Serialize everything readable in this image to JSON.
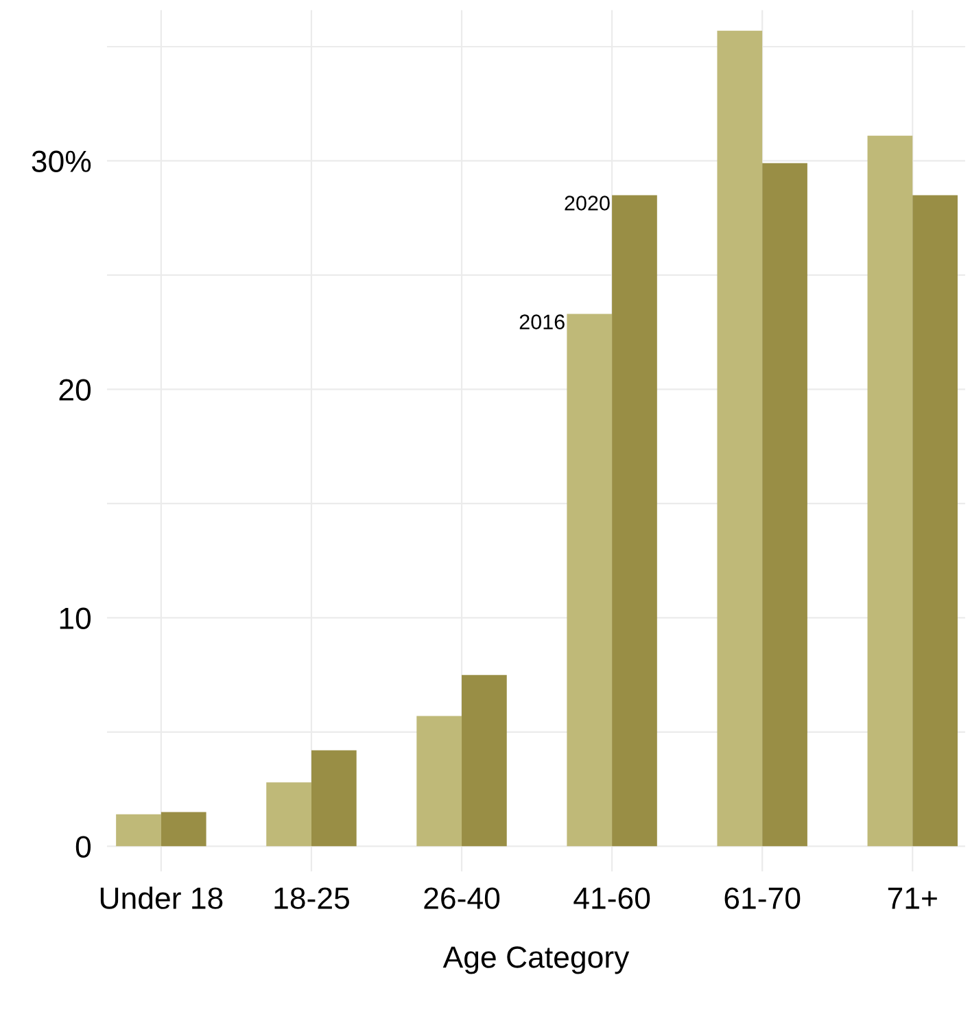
{
  "chart_data": {
    "type": "bar",
    "xlabel": "Age Category",
    "categories": [
      "Under 18",
      "18-25",
      "26-40",
      "41-60",
      "61-70",
      "71+"
    ],
    "series": [
      {
        "color": "#bfb978",
        "values": [
          1.4,
          2.8,
          5.7,
          23.3,
          35.7,
          31.1
        ]
      },
      {
        "color": "#998e45",
        "values": [
          1.5,
          4.2,
          7.5,
          28.5,
          29.9,
          28.5
        ]
      }
    ],
    "annotations": [
      {
        "text": "2016",
        "x": "41-60",
        "y": 23.3
      },
      {
        "text": "2020",
        "x": "41-60",
        "y": 28.5
      }
    ],
    "ylim": [
      -1.1,
      36.6
    ],
    "yticks": [
      0,
      {
        "value": 5,
        "label": null
      },
      10,
      {
        "value": 15,
        "label": null
      },
      20,
      {
        "value": 25,
        "label": null
      },
      {
        "value": 30,
        "label": "30%"
      },
      {
        "value": 35,
        "label": null
      }
    ],
    "grid": true
  }
}
